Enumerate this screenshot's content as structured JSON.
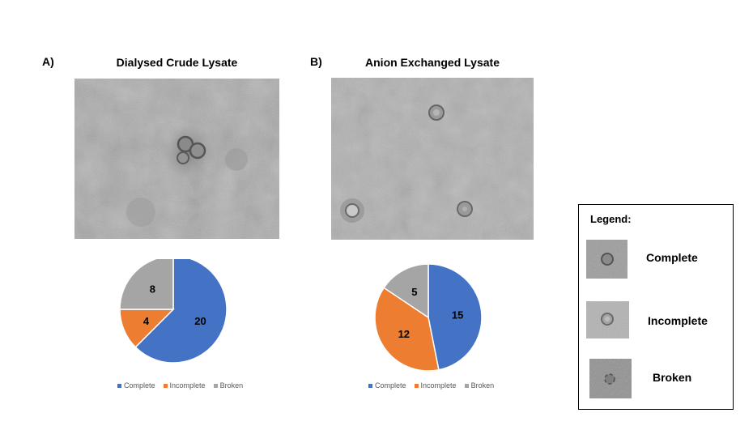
{
  "panels": [
    {
      "letter": "A)",
      "title": "Dialysed Crude Lysate",
      "image": "em-micrograph-crude",
      "chart_data": {
        "type": "pie",
        "categories": [
          "Complete",
          "Incomplete",
          "Broken"
        ],
        "values": [
          20,
          4,
          8
        ],
        "colors": [
          "#4472C4",
          "#ED7D31",
          "#A5A5A5"
        ],
        "data_labels": true,
        "legend": "bottom"
      }
    },
    {
      "letter": "B)",
      "title": "Anion Exchanged Lysate",
      "image": "em-micrograph-anion",
      "chart_data": {
        "type": "pie",
        "categories": [
          "Complete",
          "Incomplete",
          "Broken"
        ],
        "values": [
          15,
          12,
          5
        ],
        "colors": [
          "#4472C4",
          "#ED7D31",
          "#A5A5A5"
        ],
        "data_labels": true,
        "legend": "bottom"
      }
    }
  ],
  "legend_box": {
    "title": "Legend:",
    "items": [
      {
        "label": "Complete",
        "image": "complete-particle-thumbnail"
      },
      {
        "label": "Incomplete",
        "image": "incomplete-particle-thumbnail"
      },
      {
        "label": "Broken",
        "image": "broken-particle-thumbnail"
      }
    ]
  }
}
